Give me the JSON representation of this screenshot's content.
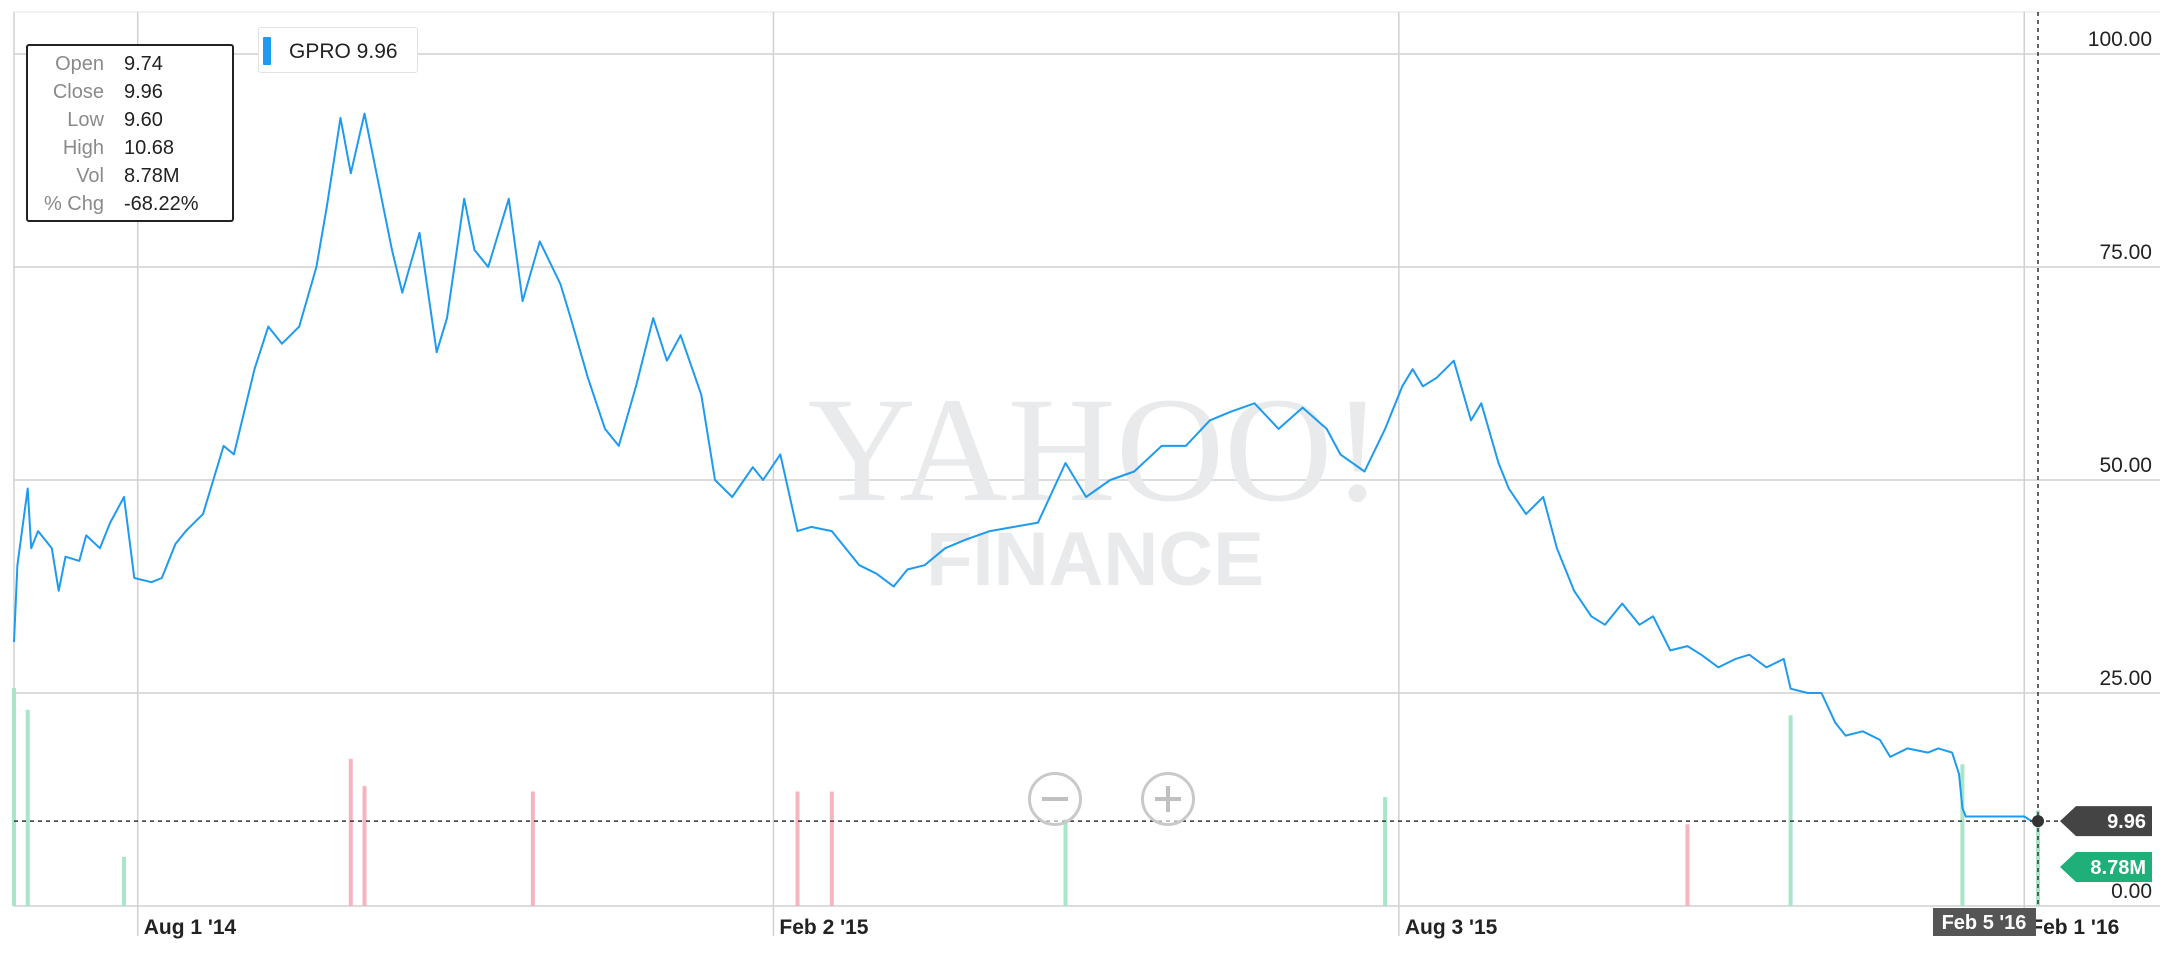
{
  "tooltip": {
    "rows": [
      {
        "label": "Open",
        "value": "9.74"
      },
      {
        "label": "Close",
        "value": "9.96"
      },
      {
        "label": "Low",
        "value": "9.60"
      },
      {
        "label": "High",
        "value": "10.68"
      },
      {
        "label": "Vol",
        "value": "8.78M"
      },
      {
        "label": "% Chg",
        "value": "-68.22%"
      }
    ]
  },
  "legend": {
    "label": "GPRO 9.96",
    "color": "#1e9bef"
  },
  "watermark": {
    "line1": "YAHOO!",
    "line2": "FINANCE"
  },
  "zoom": {
    "out_icon": "zoom-out-icon",
    "in_icon": "zoom-in-icon"
  },
  "colors": {
    "line": "#1e9bef",
    "vol_up": "#a8e6c8",
    "vol_down": "#f6b4be",
    "badge_price": "#444444",
    "badge_volume": "#1fb07a",
    "grid": "#d0d0d0"
  },
  "price_badge": "9.96",
  "volume_badge": "8.78M",
  "crosshair_date": "Feb 5 '16",
  "chart_data": {
    "type": "line",
    "title": "",
    "ticker": "GPRO",
    "y_ticks": [
      "100.00",
      "75.00",
      "50.00",
      "25.00",
      "0.00"
    ],
    "ylim": [
      0,
      100
    ],
    "x_ticks": [
      {
        "label": "Aug 1 '14",
        "date": "2014-08-01"
      },
      {
        "label": "Feb 2 '15",
        "date": "2015-02-02"
      },
      {
        "label": "Aug 3 '15",
        "date": "2015-08-03"
      },
      {
        "label": "Feb 1 '16",
        "date": "2016-02-01"
      }
    ],
    "xlim": [
      "2014-06-26",
      "2016-02-05"
    ],
    "grid": true,
    "series": [
      {
        "name": "GPRO",
        "points": [
          [
            "2014-06-26",
            31.0
          ],
          [
            "2014-06-27",
            40.0
          ],
          [
            "2014-06-30",
            49.0
          ],
          [
            "2014-07-01",
            42.0
          ],
          [
            "2014-07-03",
            44.0
          ],
          [
            "2014-07-07",
            42.0
          ],
          [
            "2014-07-09",
            37.0
          ],
          [
            "2014-07-11",
            41.0
          ],
          [
            "2014-07-15",
            40.5
          ],
          [
            "2014-07-17",
            43.5
          ],
          [
            "2014-07-21",
            42.0
          ],
          [
            "2014-07-24",
            45.0
          ],
          [
            "2014-07-28",
            48.0
          ],
          [
            "2014-07-31",
            38.5
          ],
          [
            "2014-08-05",
            38.0
          ],
          [
            "2014-08-08",
            38.5
          ],
          [
            "2014-08-12",
            42.5
          ],
          [
            "2014-08-15",
            44.0
          ],
          [
            "2014-08-20",
            46.0
          ],
          [
            "2014-08-26",
            54.0
          ],
          [
            "2014-08-29",
            53.0
          ],
          [
            "2014-09-04",
            63.0
          ],
          [
            "2014-09-08",
            68.0
          ],
          [
            "2014-09-12",
            66.0
          ],
          [
            "2014-09-17",
            68.0
          ],
          [
            "2014-09-22",
            75.0
          ],
          [
            "2014-09-25",
            82.0
          ],
          [
            "2014-09-29",
            92.5
          ],
          [
            "2014-10-02",
            86.0
          ],
          [
            "2014-10-06",
            93.0
          ],
          [
            "2014-10-09",
            87.0
          ],
          [
            "2014-10-14",
            77.0
          ],
          [
            "2014-10-17",
            72.0
          ],
          [
            "2014-10-22",
            79.0
          ],
          [
            "2014-10-27",
            65.0
          ],
          [
            "2014-10-30",
            69.0
          ],
          [
            "2014-11-04",
            83.0
          ],
          [
            "2014-11-07",
            77.0
          ],
          [
            "2014-11-11",
            75.0
          ],
          [
            "2014-11-17",
            83.0
          ],
          [
            "2014-11-21",
            71.0
          ],
          [
            "2014-11-26",
            78.0
          ],
          [
            "2014-12-02",
            73.0
          ],
          [
            "2014-12-05",
            69.0
          ],
          [
            "2014-12-10",
            62.0
          ],
          [
            "2014-12-15",
            56.0
          ],
          [
            "2014-12-19",
            54.0
          ],
          [
            "2014-12-24",
            61.0
          ],
          [
            "2014-12-29",
            69.0
          ],
          [
            "2015-01-02",
            64.0
          ],
          [
            "2015-01-06",
            67.0
          ],
          [
            "2015-01-12",
            60.0
          ],
          [
            "2015-01-16",
            50.0
          ],
          [
            "2015-01-21",
            48.0
          ],
          [
            "2015-01-27",
            51.5
          ],
          [
            "2015-01-30",
            50.0
          ],
          [
            "2015-02-04",
            53.0
          ],
          [
            "2015-02-09",
            44.0
          ],
          [
            "2015-02-13",
            44.5
          ],
          [
            "2015-02-19",
            44.0
          ],
          [
            "2015-02-23",
            42.0
          ],
          [
            "2015-02-27",
            40.0
          ],
          [
            "2015-03-04",
            39.0
          ],
          [
            "2015-03-09",
            37.5
          ],
          [
            "2015-03-13",
            39.5
          ],
          [
            "2015-03-18",
            40.0
          ],
          [
            "2015-03-24",
            42.0
          ],
          [
            "2015-03-30",
            43.0
          ],
          [
            "2015-04-06",
            44.0
          ],
          [
            "2015-04-13",
            44.5
          ],
          [
            "2015-04-20",
            45.0
          ],
          [
            "2015-04-28",
            52.0
          ],
          [
            "2015-05-04",
            48.0
          ],
          [
            "2015-05-11",
            50.0
          ],
          [
            "2015-05-18",
            51.0
          ],
          [
            "2015-05-26",
            54.0
          ],
          [
            "2015-06-02",
            54.0
          ],
          [
            "2015-06-09",
            57.0
          ],
          [
            "2015-06-15",
            58.0
          ],
          [
            "2015-06-22",
            59.0
          ],
          [
            "2015-06-29",
            56.0
          ],
          [
            "2015-07-06",
            58.5
          ],
          [
            "2015-07-13",
            56.0
          ],
          [
            "2015-07-17",
            53.0
          ],
          [
            "2015-07-24",
            51.0
          ],
          [
            "2015-07-30",
            56.0
          ],
          [
            "2015-08-04",
            61.0
          ],
          [
            "2015-08-07",
            63.0
          ],
          [
            "2015-08-10",
            61.0
          ],
          [
            "2015-08-14",
            62.0
          ],
          [
            "2015-08-19",
            64.0
          ],
          [
            "2015-08-24",
            57.0
          ],
          [
            "2015-08-27",
            59.0
          ],
          [
            "2015-09-01",
            52.0
          ],
          [
            "2015-09-04",
            49.0
          ],
          [
            "2015-09-09",
            46.0
          ],
          [
            "2015-09-14",
            48.0
          ],
          [
            "2015-09-18",
            42.0
          ],
          [
            "2015-09-23",
            37.0
          ],
          [
            "2015-09-28",
            34.0
          ],
          [
            "2015-10-02",
            33.0
          ],
          [
            "2015-10-07",
            35.5
          ],
          [
            "2015-10-12",
            33.0
          ],
          [
            "2015-10-16",
            34.0
          ],
          [
            "2015-10-21",
            30.0
          ],
          [
            "2015-10-26",
            30.5
          ],
          [
            "2015-10-30",
            29.5
          ],
          [
            "2015-11-04",
            28.0
          ],
          [
            "2015-11-09",
            29.0
          ],
          [
            "2015-11-13",
            29.5
          ],
          [
            "2015-11-18",
            28.0
          ],
          [
            "2015-11-23",
            29.0
          ],
          [
            "2015-11-25",
            25.5
          ],
          [
            "2015-11-30",
            25.0
          ],
          [
            "2015-12-04",
            25.0
          ],
          [
            "2015-12-08",
            21.5
          ],
          [
            "2015-12-11",
            20.0
          ],
          [
            "2015-12-16",
            20.5
          ],
          [
            "2015-12-21",
            19.5
          ],
          [
            "2015-12-24",
            17.5
          ],
          [
            "2015-12-29",
            18.5
          ],
          [
            "2016-01-04",
            18.0
          ],
          [
            "2016-01-07",
            18.5
          ],
          [
            "2016-01-11",
            18.0
          ],
          [
            "2016-01-13",
            15.5
          ],
          [
            "2016-01-14",
            11.5
          ],
          [
            "2016-01-15",
            10.5
          ],
          [
            "2016-01-20",
            10.5
          ],
          [
            "2016-01-26",
            10.5
          ],
          [
            "2016-02-01",
            10.5
          ],
          [
            "2016-02-03",
            10.0
          ],
          [
            "2016-02-05",
            9.96
          ]
        ]
      }
    ],
    "volume": {
      "unit": "M",
      "ylim": [
        0,
        20
      ],
      "last": 8.78,
      "bars": [
        {
          "date": "2014-06-26",
          "value": 20.0,
          "dir": "up"
        },
        {
          "date": "2014-06-30",
          "value": 18.0,
          "dir": "up"
        },
        {
          "date": "2014-07-28",
          "value": 4.5,
          "dir": "up"
        },
        {
          "date": "2014-10-02",
          "value": 13.5,
          "dir": "down"
        },
        {
          "date": "2014-10-06",
          "value": 11.0,
          "dir": "down"
        },
        {
          "date": "2014-11-24",
          "value": 10.5,
          "dir": "down"
        },
        {
          "date": "2015-02-09",
          "value": 10.5,
          "dir": "down"
        },
        {
          "date": "2015-02-19",
          "value": 10.5,
          "dir": "down"
        },
        {
          "date": "2015-04-28",
          "value": 8.0,
          "dir": "up"
        },
        {
          "date": "2015-07-30",
          "value": 10.0,
          "dir": "up"
        },
        {
          "date": "2015-10-26",
          "value": 7.5,
          "dir": "down"
        },
        {
          "date": "2015-11-25",
          "value": 17.5,
          "dir": "up"
        },
        {
          "date": "2016-01-14",
          "value": 13.0,
          "dir": "up"
        },
        {
          "date": "2016-02-05",
          "value": 8.78,
          "dir": "up"
        }
      ]
    }
  }
}
